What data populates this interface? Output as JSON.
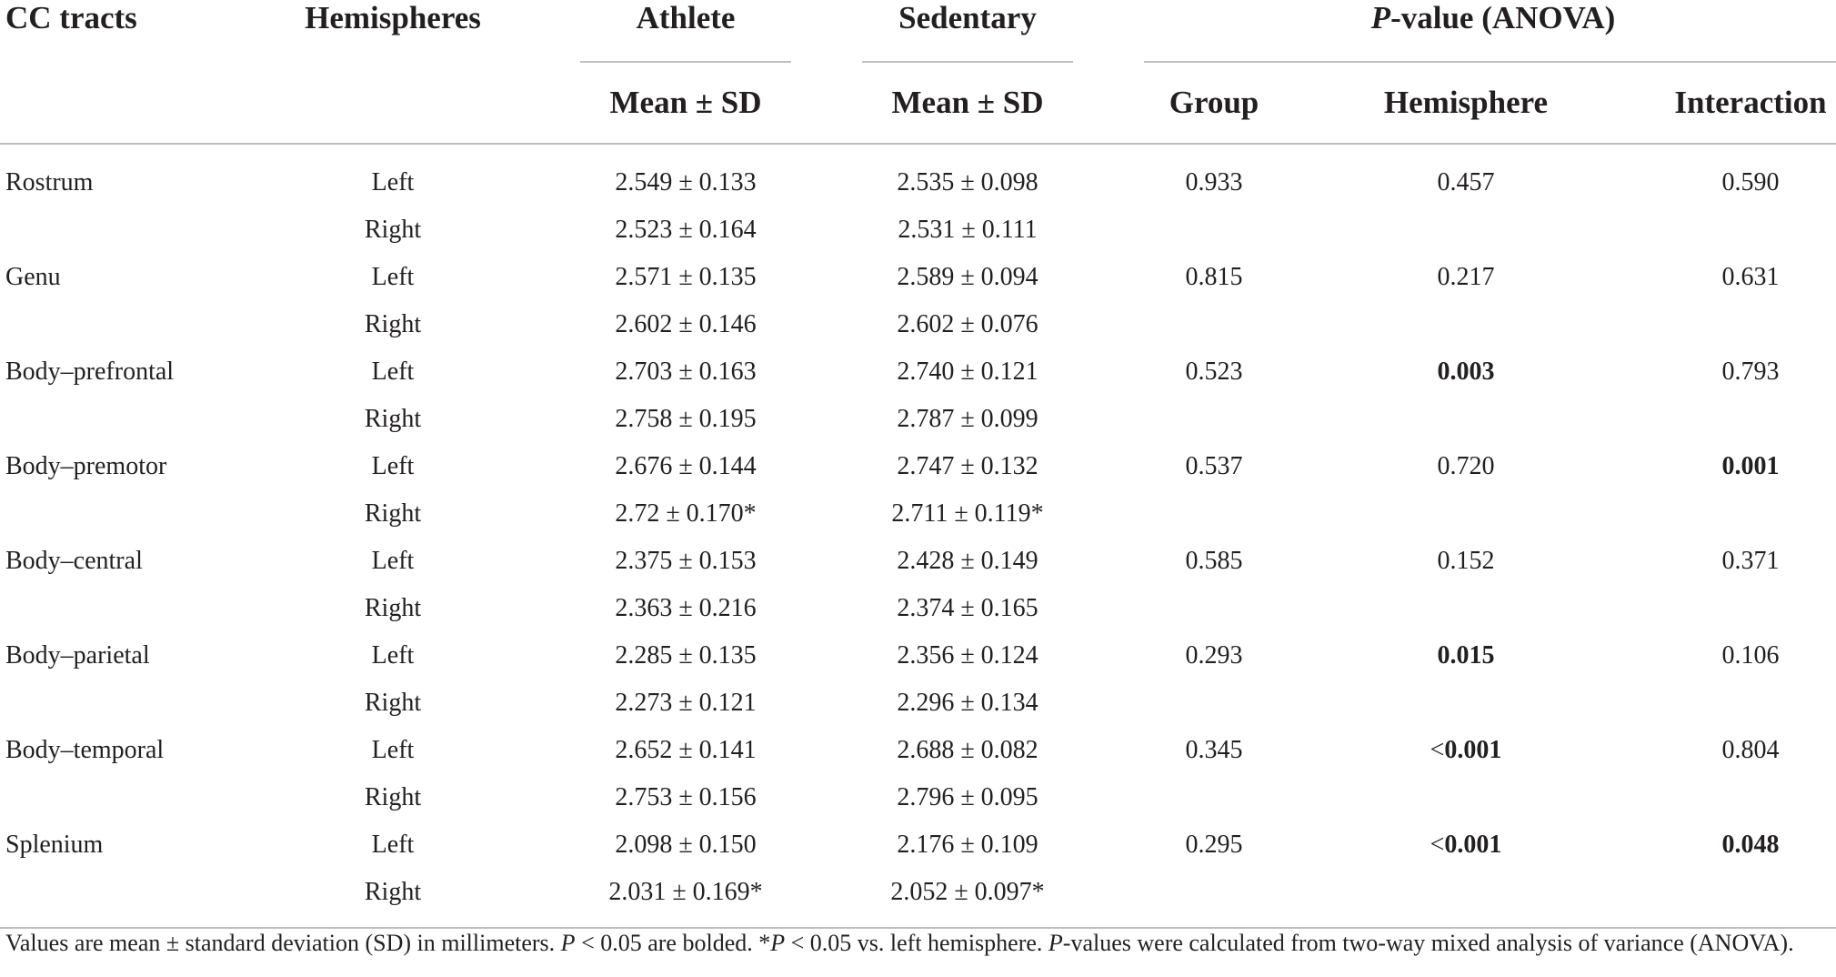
{
  "header": {
    "cc_tracts": "CC tracts",
    "hemispheres": "Hemispheres",
    "athlete": "Athlete",
    "sedentary": "Sedentary",
    "pvalue_italic": "P",
    "pvalue_rest": "-value (ANOVA)",
    "athlete_sub": "Mean ± SD",
    "sedentary_sub": "Mean ± SD",
    "group": "Group",
    "hemisphere": "Hemisphere",
    "interaction": "Interaction"
  },
  "rows": [
    {
      "tract": "Rostrum",
      "hemi": "Left",
      "athlete": "2.549 ± 0.133",
      "sedentary": "2.535 ± 0.098",
      "group": "0.933",
      "hemisphere": "0.457",
      "interaction": "0.590"
    },
    {
      "tract": "",
      "hemi": "Right",
      "athlete": "2.523 ± 0.164",
      "sedentary": "2.531 ± 0.111",
      "group": "",
      "hemisphere": "",
      "interaction": ""
    },
    {
      "tract": "Genu",
      "hemi": "Left",
      "athlete": "2.571 ± 0.135",
      "sedentary": "2.589 ± 0.094",
      "group": "0.815",
      "hemisphere": "0.217",
      "interaction": "0.631"
    },
    {
      "tract": "",
      "hemi": "Right",
      "athlete": "2.602 ± 0.146",
      "sedentary": "2.602 ± 0.076",
      "group": "",
      "hemisphere": "",
      "interaction": ""
    },
    {
      "tract": "Body–prefrontal",
      "hemi": "Left",
      "athlete": "2.703 ± 0.163",
      "sedentary": "2.740 ± 0.121",
      "group": "0.523",
      "hemisphere": "0.003",
      "interaction": "0.793"
    },
    {
      "tract": "",
      "hemi": "Right",
      "athlete": "2.758 ± 0.195",
      "sedentary": "2.787 ± 0.099",
      "group": "",
      "hemisphere": "",
      "interaction": ""
    },
    {
      "tract": "Body–premotor",
      "hemi": "Left",
      "athlete": "2.676 ± 0.144",
      "sedentary": "2.747 ± 0.132",
      "group": "0.537",
      "hemisphere": "0.720",
      "interaction": "0.001"
    },
    {
      "tract": "",
      "hemi": "Right",
      "athlete": "2.72 ± 0.170*",
      "sedentary": "2.711 ± 0.119*",
      "group": "",
      "hemisphere": "",
      "interaction": ""
    },
    {
      "tract": "Body–central",
      "hemi": "Left",
      "athlete": "2.375 ± 0.153",
      "sedentary": "2.428 ± 0.149",
      "group": "0.585",
      "hemisphere": "0.152",
      "interaction": "0.371"
    },
    {
      "tract": "",
      "hemi": "Right",
      "athlete": "2.363 ± 0.216",
      "sedentary": "2.374 ± 0.165",
      "group": "",
      "hemisphere": "",
      "interaction": ""
    },
    {
      "tract": "Body–parietal",
      "hemi": "Left",
      "athlete": "2.285 ± 0.135",
      "sedentary": "2.356 ± 0.124",
      "group": "0.293",
      "hemisphere": "0.015",
      "interaction": "0.106"
    },
    {
      "tract": "",
      "hemi": "Right",
      "athlete": "2.273 ± 0.121",
      "sedentary": "2.296 ± 0.134",
      "group": "",
      "hemisphere": "",
      "interaction": ""
    },
    {
      "tract": "Body–temporal",
      "hemi": "Left",
      "athlete": "2.652 ± 0.141",
      "sedentary": "2.688 ± 0.082",
      "group": "0.345",
      "hemisphere": "<0.001",
      "interaction": "0.804"
    },
    {
      "tract": "",
      "hemi": "Right",
      "athlete": "2.753 ± 0.156",
      "sedentary": "2.796 ± 0.095",
      "group": "",
      "hemisphere": "",
      "interaction": ""
    },
    {
      "tract": "Splenium",
      "hemi": "Left",
      "athlete": "2.098 ± 0.150",
      "sedentary": "2.176 ± 0.109",
      "group": "0.295",
      "hemisphere": "<0.001",
      "interaction": "0.048"
    },
    {
      "tract": "",
      "hemi": "Right",
      "athlete": "2.031 ± 0.169*",
      "sedentary": "2.052 ± 0.097*",
      "group": "",
      "hemisphere": "",
      "interaction": ""
    }
  ],
  "bold_cells": [
    "4.hemisphere",
    "6.interaction",
    "10.hemisphere",
    "12.hemisphere",
    "14.hemisphere",
    "14.interaction"
  ],
  "footnote": {
    "p1": "Values are mean ± standard deviation (SD) in millimeters. ",
    "p2": "P",
    "p3": " < 0.05 are bolded. *",
    "p4": "P",
    "p5": " < 0.05 vs. left hemisphere. ",
    "p6": "P",
    "p7": "-values were calculated from two-way mixed analysis of variance (ANOVA)."
  }
}
